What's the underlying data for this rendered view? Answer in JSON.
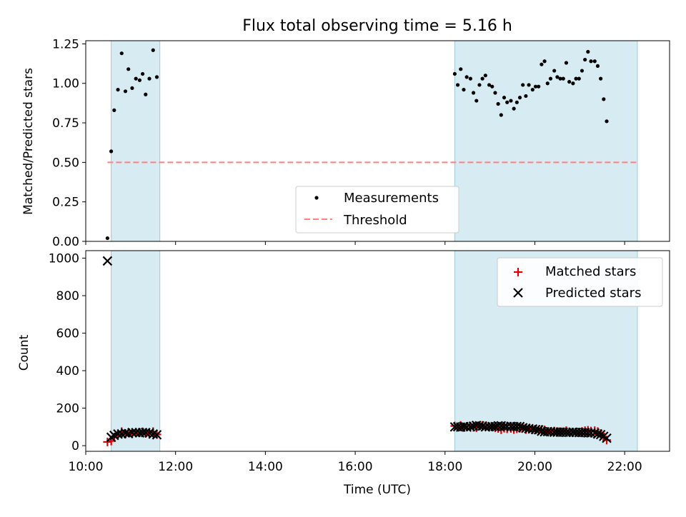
{
  "chart_data": [
    {
      "type": "scatter",
      "title": "Flux total observing time = 5.16 h",
      "ylabel": "Matched/Predicted stars",
      "xlim": [
        "10:00",
        "23:00"
      ],
      "ylim": [
        0,
        1.27
      ],
      "yticks": [
        "0.00",
        "0.25",
        "0.50",
        "0.75",
        "1.00",
        "1.25"
      ],
      "xtick_labels_shown": false,
      "legend_location": "lower center",
      "observing_windows": [
        {
          "start": "10:34",
          "end": "11:39"
        },
        {
          "start": "18:13",
          "end": "22:17"
        }
      ],
      "threshold": {
        "name": "Threshold",
        "value": 0.5,
        "from": "10:29",
        "to": "22:17",
        "color": "#ff7f7f"
      },
      "series": [
        {
          "name": "Measurements",
          "color": "#000000",
          "points": [
            [
              "10:29",
              0.02
            ],
            [
              "10:34",
              0.57
            ],
            [
              "10:38",
              0.83
            ],
            [
              "10:43",
              0.96
            ],
            [
              "10:48",
              1.19
            ],
            [
              "10:53",
              0.95
            ],
            [
              "10:57",
              1.09
            ],
            [
              "11:02",
              0.97
            ],
            [
              "11:07",
              1.03
            ],
            [
              "11:12",
              1.02
            ],
            [
              "11:16",
              1.06
            ],
            [
              "11:20",
              0.93
            ],
            [
              "11:25",
              1.03
            ],
            [
              "11:30",
              1.21
            ],
            [
              "11:35",
              1.04
            ],
            [
              "18:13",
              1.06
            ],
            [
              "18:17",
              0.99
            ],
            [
              "18:21",
              1.09
            ],
            [
              "18:25",
              0.96
            ],
            [
              "18:29",
              1.04
            ],
            [
              "18:34",
              1.03
            ],
            [
              "18:38",
              0.94
            ],
            [
              "18:42",
              0.89
            ],
            [
              "18:46",
              0.99
            ],
            [
              "18:50",
              1.03
            ],
            [
              "18:54",
              1.05
            ],
            [
              "18:59",
              0.99
            ],
            [
              "19:03",
              0.98
            ],
            [
              "19:07",
              0.94
            ],
            [
              "19:11",
              0.87
            ],
            [
              "19:15",
              0.8
            ],
            [
              "19:19",
              0.91
            ],
            [
              "19:23",
              0.88
            ],
            [
              "19:28",
              0.89
            ],
            [
              "19:32",
              0.84
            ],
            [
              "19:36",
              0.88
            ],
            [
              "19:40",
              0.91
            ],
            [
              "19:44",
              0.99
            ],
            [
              "19:48",
              0.92
            ],
            [
              "19:52",
              0.99
            ],
            [
              "19:57",
              0.96
            ],
            [
              "20:01",
              0.98
            ],
            [
              "20:05",
              0.98
            ],
            [
              "20:09",
              1.12
            ],
            [
              "20:13",
              1.14
            ],
            [
              "20:17",
              1.0
            ],
            [
              "20:21",
              1.03
            ],
            [
              "20:26",
              1.08
            ],
            [
              "20:30",
              1.04
            ],
            [
              "20:34",
              1.03
            ],
            [
              "20:38",
              1.03
            ],
            [
              "20:42",
              1.13
            ],
            [
              "20:46",
              1.01
            ],
            [
              "20:51",
              1.0
            ],
            [
              "20:55",
              1.03
            ],
            [
              "20:59",
              1.03
            ],
            [
              "21:03",
              1.08
            ],
            [
              "21:07",
              1.15
            ],
            [
              "21:11",
              1.2
            ],
            [
              "21:15",
              1.14
            ],
            [
              "21:20",
              1.14
            ],
            [
              "21:24",
              1.11
            ],
            [
              "21:28",
              1.03
            ],
            [
              "21:32",
              0.9
            ],
            [
              "21:36",
              0.76
            ]
          ]
        }
      ]
    },
    {
      "type": "scatter",
      "xlabel": "Time (UTC)",
      "ylabel": "Count",
      "xlim": [
        "10:00",
        "23:00"
      ],
      "ylim": [
        -30,
        1040
      ],
      "yticks": [
        "0",
        "200",
        "400",
        "600",
        "800",
        "1000"
      ],
      "xticks": [
        "10:00",
        "12:00",
        "14:00",
        "16:00",
        "18:00",
        "20:00",
        "22:00"
      ],
      "legend_location": "upper right",
      "observing_windows": [
        {
          "start": "10:34",
          "end": "11:39"
        },
        {
          "start": "18:13",
          "end": "22:17"
        }
      ],
      "series": [
        {
          "name": "Matched stars",
          "marker": "plus",
          "color": "#e00000",
          "points": [
            [
              "10:29",
              20
            ],
            [
              "10:34",
              25
            ],
            [
              "10:38",
              45
            ],
            [
              "10:43",
              60
            ],
            [
              "10:48",
              75
            ],
            [
              "10:53",
              65
            ],
            [
              "10:57",
              70
            ],
            [
              "11:02",
              68
            ],
            [
              "11:07",
              72
            ],
            [
              "11:12",
              70
            ],
            [
              "11:16",
              74
            ],
            [
              "11:20",
              66
            ],
            [
              "11:25",
              70
            ],
            [
              "11:30",
              75
            ],
            [
              "11:35",
              60
            ],
            [
              "18:13",
              105
            ],
            [
              "18:17",
              100
            ],
            [
              "18:21",
              108
            ],
            [
              "18:25",
              98
            ],
            [
              "18:29",
              103
            ],
            [
              "18:34",
              104
            ],
            [
              "18:38",
              98
            ],
            [
              "18:42",
              96
            ],
            [
              "18:46",
              105
            ],
            [
              "18:50",
              108
            ],
            [
              "18:54",
              105
            ],
            [
              "18:59",
              100
            ],
            [
              "19:03",
              100
            ],
            [
              "19:07",
              96
            ],
            [
              "19:11",
              92
            ],
            [
              "19:15",
              85
            ],
            [
              "19:19",
              93
            ],
            [
              "19:23",
              90
            ],
            [
              "19:28",
              92
            ],
            [
              "19:32",
              86
            ],
            [
              "19:36",
              90
            ],
            [
              "19:40",
              93
            ],
            [
              "19:44",
              95
            ],
            [
              "19:48",
              86
            ],
            [
              "19:52",
              90
            ],
            [
              "19:57",
              85
            ],
            [
              "20:01",
              84
            ],
            [
              "20:05",
              83
            ],
            [
              "20:09",
              86
            ],
            [
              "20:13",
              84
            ],
            [
              "20:17",
              75
            ],
            [
              "20:21",
              76
            ],
            [
              "20:26",
              78
            ],
            [
              "20:30",
              75
            ],
            [
              "20:34",
              74
            ],
            [
              "20:38",
              74
            ],
            [
              "20:42",
              80
            ],
            [
              "20:46",
              72
            ],
            [
              "20:51",
              72
            ],
            [
              "20:55",
              73
            ],
            [
              "20:59",
              72
            ],
            [
              "21:03",
              76
            ],
            [
              "21:07",
              80
            ],
            [
              "21:11",
              82
            ],
            [
              "21:15",
              78
            ],
            [
              "21:20",
              80
            ],
            [
              "21:24",
              75
            ],
            [
              "21:28",
              65
            ],
            [
              "21:32",
              45
            ],
            [
              "21:36",
              30
            ]
          ]
        },
        {
          "name": "Predicted stars",
          "marker": "x",
          "color": "#000000",
          "points": [
            [
              "10:29",
              985
            ],
            [
              "10:34",
              45
            ],
            [
              "10:38",
              55
            ],
            [
              "10:43",
              62
            ],
            [
              "10:48",
              63
            ],
            [
              "10:53",
              68
            ],
            [
              "10:57",
              64
            ],
            [
              "11:02",
              70
            ],
            [
              "11:07",
              70
            ],
            [
              "11:12",
              68
            ],
            [
              "11:16",
              70
            ],
            [
              "11:20",
              70
            ],
            [
              "11:25",
              68
            ],
            [
              "11:30",
              62
            ],
            [
              "11:35",
              58
            ],
            [
              "18:13",
              100
            ],
            [
              "18:17",
              101
            ],
            [
              "18:21",
              99
            ],
            [
              "18:25",
              102
            ],
            [
              "18:29",
              99
            ],
            [
              "18:34",
              101
            ],
            [
              "18:38",
              104
            ],
            [
              "18:42",
              108
            ],
            [
              "18:46",
              106
            ],
            [
              "18:50",
              105
            ],
            [
              "18:54",
              100
            ],
            [
              "18:59",
              101
            ],
            [
              "19:03",
              102
            ],
            [
              "19:07",
              102
            ],
            [
              "19:11",
              106
            ],
            [
              "19:15",
              106
            ],
            [
              "19:19",
              102
            ],
            [
              "19:23",
              102
            ],
            [
              "19:28",
              103
            ],
            [
              "19:32",
              102
            ],
            [
              "19:36",
              102
            ],
            [
              "19:40",
              102
            ],
            [
              "19:44",
              96
            ],
            [
              "19:48",
              93
            ],
            [
              "19:52",
              91
            ],
            [
              "19:57",
              89
            ],
            [
              "20:01",
              86
            ],
            [
              "20:05",
              85
            ],
            [
              "20:09",
              77
            ],
            [
              "20:13",
              74
            ],
            [
              "20:17",
              75
            ],
            [
              "20:21",
              74
            ],
            [
              "20:26",
              72
            ],
            [
              "20:30",
              72
            ],
            [
              "20:34",
              72
            ],
            [
              "20:38",
              72
            ],
            [
              "20:42",
              71
            ],
            [
              "20:46",
              71
            ],
            [
              "20:51",
              72
            ],
            [
              "20:55",
              71
            ],
            [
              "20:59",
              70
            ],
            [
              "21:03",
              70
            ],
            [
              "21:07",
              70
            ],
            [
              "21:11",
              68
            ],
            [
              "21:15",
              68
            ],
            [
              "21:20",
              68
            ],
            [
              "21:24",
              62
            ],
            [
              "21:28",
              59
            ],
            [
              "21:32",
              50
            ],
            [
              "21:36",
              40
            ]
          ]
        }
      ]
    }
  ]
}
